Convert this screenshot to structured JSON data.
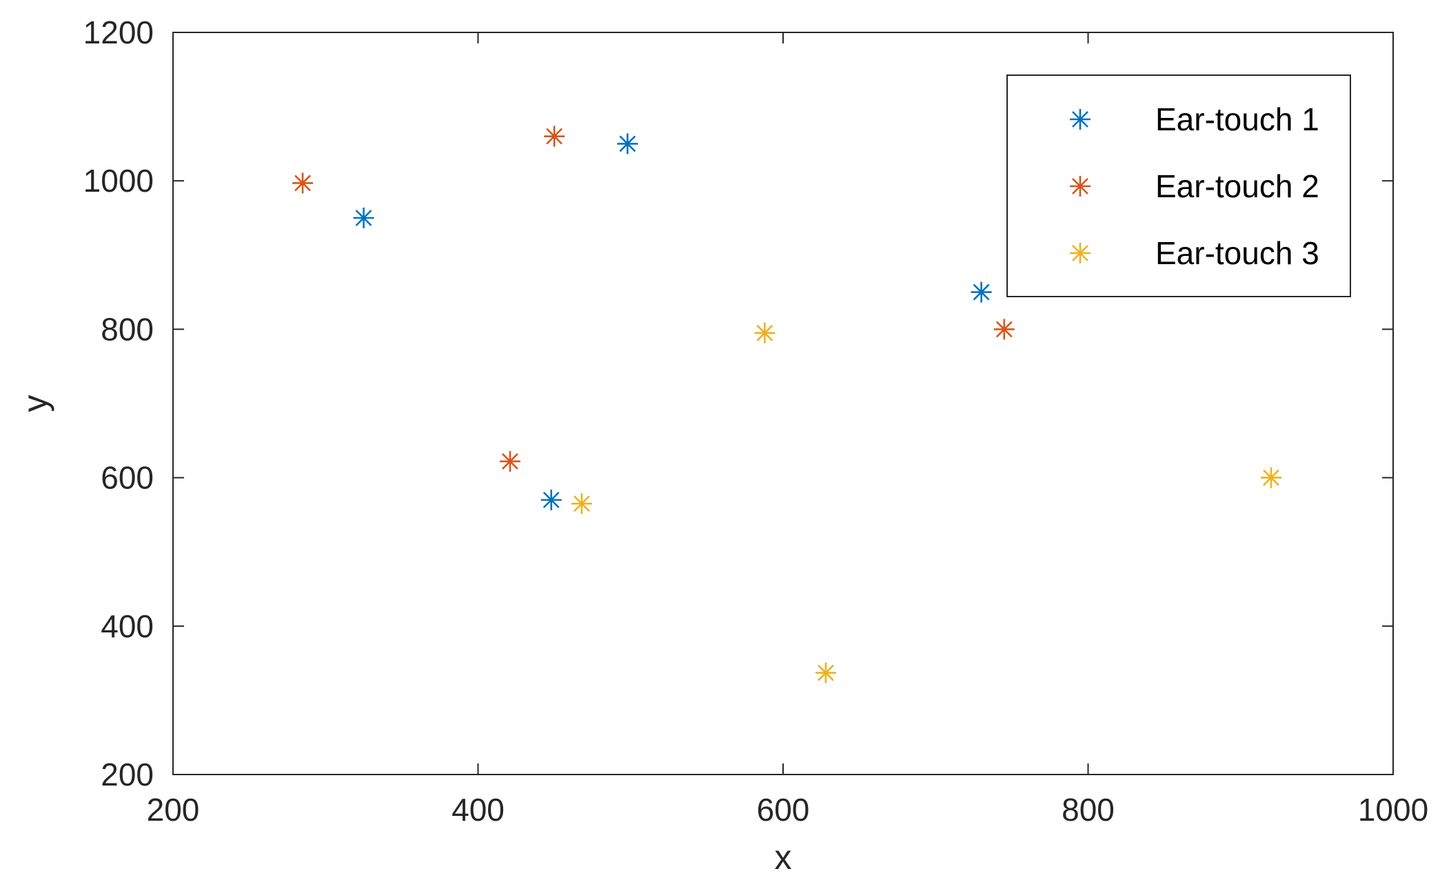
{
  "chart_data": {
    "type": "scatter",
    "xlabel": "x",
    "ylabel": "y",
    "xlim": [
      200,
      1000
    ],
    "ylim": [
      200,
      1200
    ],
    "xticks": [
      200,
      400,
      600,
      800,
      1000
    ],
    "yticks": [
      200,
      400,
      600,
      800,
      1000,
      1200
    ],
    "grid": false,
    "legend_position": "top-right",
    "marker": "asterisk",
    "series": [
      {
        "name": "Ear-touch 1",
        "color": "#0072BD",
        "points": [
          [
            325,
            950
          ],
          [
            498,
            1050
          ],
          [
            730,
            850
          ],
          [
            448,
            570
          ]
        ]
      },
      {
        "name": "Ear-touch 2",
        "color": "#D95319",
        "points": [
          [
            285,
            997
          ],
          [
            450,
            1060
          ],
          [
            745,
            800
          ],
          [
            421,
            622
          ]
        ]
      },
      {
        "name": "Ear-touch 3",
        "color": "#EDB120",
        "points": [
          [
            588,
            795
          ],
          [
            468,
            565
          ],
          [
            628,
            337
          ],
          [
            920,
            600
          ]
        ]
      }
    ]
  }
}
